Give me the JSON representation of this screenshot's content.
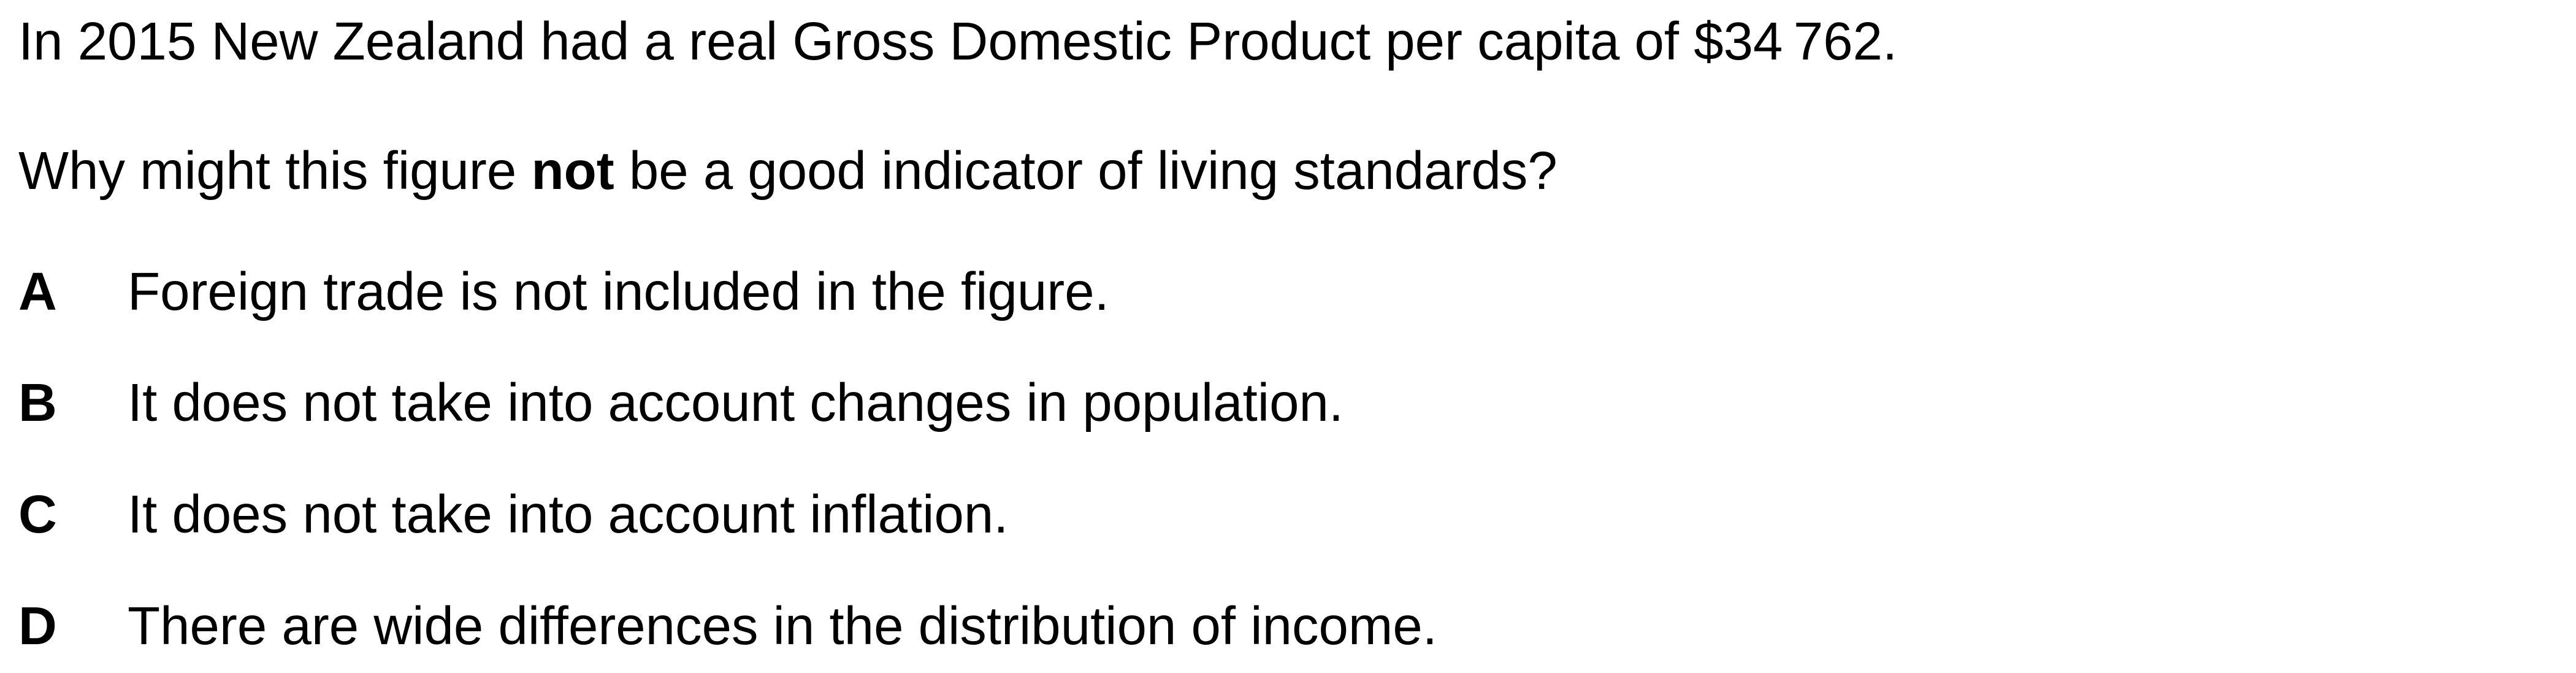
{
  "stem": "In 2015 New Zealand had a real Gross Domestic Product per capita of $34 762.",
  "question": {
    "before": "Why might this figure ",
    "emphasis": "not",
    "after": " be a good indicator of living standards?"
  },
  "options": [
    {
      "letter": "A",
      "text": "Foreign trade is not included in the figure."
    },
    {
      "letter": "B",
      "text": "It does not take into account changes in population."
    },
    {
      "letter": "C",
      "text": "It does not take into account inflation."
    },
    {
      "letter": "D",
      "text": "There are wide differences in the distribution of income."
    }
  ]
}
